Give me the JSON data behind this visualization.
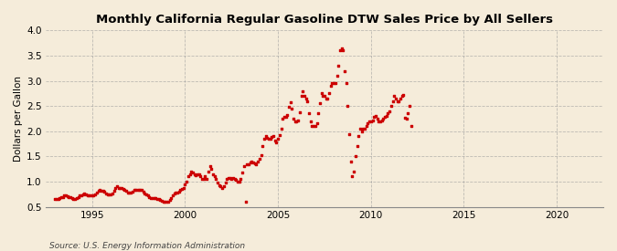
{
  "title": "Monthly California Regular Gasoline DTW Sales Price by All Sellers",
  "ylabel": "Dollars per Gallon",
  "source": "Source: U.S. Energy Information Administration",
  "background_color": "#f5ecda",
  "dot_color": "#cc0000",
  "xlim": [
    1992.5,
    2022.5
  ],
  "ylim": [
    0.5,
    4.0
  ],
  "yticks": [
    0.5,
    1.0,
    1.5,
    2.0,
    2.5,
    3.0,
    3.5,
    4.0
  ],
  "xticks": [
    1995,
    2000,
    2005,
    2010,
    2015,
    2020
  ],
  "months_data": [
    [
      1993,
      1,
      0.655
    ],
    [
      1993,
      2,
      0.65
    ],
    [
      1993,
      3,
      0.66
    ],
    [
      1993,
      4,
      0.67
    ],
    [
      1993,
      5,
      0.69
    ],
    [
      1993,
      6,
      0.7
    ],
    [
      1993,
      7,
      0.72
    ],
    [
      1993,
      8,
      0.725
    ],
    [
      1993,
      9,
      0.715
    ],
    [
      1993,
      10,
      0.7
    ],
    [
      1993,
      11,
      0.685
    ],
    [
      1993,
      12,
      0.67
    ],
    [
      1994,
      1,
      0.66
    ],
    [
      1994,
      2,
      0.66
    ],
    [
      1994,
      3,
      0.68
    ],
    [
      1994,
      4,
      0.7
    ],
    [
      1994,
      5,
      0.72
    ],
    [
      1994,
      6,
      0.73
    ],
    [
      1994,
      7,
      0.75
    ],
    [
      1994,
      8,
      0.76
    ],
    [
      1994,
      9,
      0.75
    ],
    [
      1994,
      10,
      0.73
    ],
    [
      1994,
      11,
      0.72
    ],
    [
      1994,
      12,
      0.72
    ],
    [
      1995,
      1,
      0.72
    ],
    [
      1995,
      2,
      0.72
    ],
    [
      1995,
      3,
      0.74
    ],
    [
      1995,
      4,
      0.78
    ],
    [
      1995,
      5,
      0.82
    ],
    [
      1995,
      6,
      0.83
    ],
    [
      1995,
      7,
      0.82
    ],
    [
      1995,
      8,
      0.82
    ],
    [
      1995,
      9,
      0.8
    ],
    [
      1995,
      10,
      0.77
    ],
    [
      1995,
      11,
      0.75
    ],
    [
      1995,
      12,
      0.74
    ],
    [
      1996,
      1,
      0.75
    ],
    [
      1996,
      2,
      0.77
    ],
    [
      1996,
      3,
      0.82
    ],
    [
      1996,
      4,
      0.88
    ],
    [
      1996,
      5,
      0.9
    ],
    [
      1996,
      6,
      0.88
    ],
    [
      1996,
      7,
      0.87
    ],
    [
      1996,
      8,
      0.87
    ],
    [
      1996,
      9,
      0.86
    ],
    [
      1996,
      10,
      0.84
    ],
    [
      1996,
      11,
      0.81
    ],
    [
      1996,
      12,
      0.79
    ],
    [
      1997,
      1,
      0.78
    ],
    [
      1997,
      2,
      0.78
    ],
    [
      1997,
      3,
      0.8
    ],
    [
      1997,
      4,
      0.83
    ],
    [
      1997,
      5,
      0.84
    ],
    [
      1997,
      6,
      0.84
    ],
    [
      1997,
      7,
      0.84
    ],
    [
      1997,
      8,
      0.84
    ],
    [
      1997,
      9,
      0.83
    ],
    [
      1997,
      10,
      0.8
    ],
    [
      1997,
      11,
      0.77
    ],
    [
      1997,
      12,
      0.75
    ],
    [
      1998,
      1,
      0.72
    ],
    [
      1998,
      2,
      0.7
    ],
    [
      1998,
      3,
      0.68
    ],
    [
      1998,
      4,
      0.68
    ],
    [
      1998,
      5,
      0.68
    ],
    [
      1998,
      6,
      0.68
    ],
    [
      1998,
      7,
      0.66
    ],
    [
      1998,
      8,
      0.65
    ],
    [
      1998,
      9,
      0.63
    ],
    [
      1998,
      10,
      0.62
    ],
    [
      1998,
      11,
      0.61
    ],
    [
      1998,
      12,
      0.61
    ],
    [
      1999,
      1,
      0.6
    ],
    [
      1999,
      2,
      0.61
    ],
    [
      1999,
      3,
      0.64
    ],
    [
      1999,
      4,
      0.68
    ],
    [
      1999,
      5,
      0.73
    ],
    [
      1999,
      6,
      0.76
    ],
    [
      1999,
      7,
      0.78
    ],
    [
      1999,
      8,
      0.79
    ],
    [
      1999,
      9,
      0.8
    ],
    [
      1999,
      10,
      0.83
    ],
    [
      1999,
      11,
      0.85
    ],
    [
      1999,
      12,
      0.88
    ],
    [
      2000,
      1,
      0.95
    ],
    [
      2000,
      2,
      1.0
    ],
    [
      2000,
      3,
      1.1
    ],
    [
      2000,
      4,
      1.15
    ],
    [
      2000,
      5,
      1.2
    ],
    [
      2000,
      6,
      1.18
    ],
    [
      2000,
      7,
      1.14
    ],
    [
      2000,
      8,
      1.13
    ],
    [
      2000,
      9,
      1.15
    ],
    [
      2000,
      10,
      1.14
    ],
    [
      2000,
      11,
      1.11
    ],
    [
      2000,
      12,
      1.05
    ],
    [
      2001,
      1,
      1.05
    ],
    [
      2001,
      2,
      1.1
    ],
    [
      2001,
      3,
      1.05
    ],
    [
      2001,
      4,
      1.2
    ],
    [
      2001,
      5,
      1.3
    ],
    [
      2001,
      6,
      1.25
    ],
    [
      2001,
      7,
      1.15
    ],
    [
      2001,
      8,
      1.1
    ],
    [
      2001,
      9,
      1.05
    ],
    [
      2001,
      10,
      0.98
    ],
    [
      2001,
      11,
      0.92
    ],
    [
      2001,
      12,
      0.9
    ],
    [
      2002,
      1,
      0.88
    ],
    [
      2002,
      2,
      0.9
    ],
    [
      2002,
      3,
      0.98
    ],
    [
      2002,
      4,
      1.05
    ],
    [
      2002,
      5,
      1.08
    ],
    [
      2002,
      6,
      1.07
    ],
    [
      2002,
      7,
      1.06
    ],
    [
      2002,
      8,
      1.07
    ],
    [
      2002,
      9,
      1.06
    ],
    [
      2002,
      10,
      1.03
    ],
    [
      2002,
      11,
      1.0
    ],
    [
      2002,
      12,
      1.0
    ],
    [
      2003,
      1,
      1.05
    ],
    [
      2003,
      2,
      1.18
    ],
    [
      2003,
      3,
      1.3
    ],
    [
      2003,
      4,
      0.6
    ],
    [
      2003,
      5,
      1.35
    ],
    [
      2003,
      6,
      1.35
    ],
    [
      2003,
      7,
      1.38
    ],
    [
      2003,
      8,
      1.4
    ],
    [
      2003,
      9,
      1.38
    ],
    [
      2003,
      10,
      1.36
    ],
    [
      2003,
      11,
      1.35
    ],
    [
      2003,
      12,
      1.4
    ],
    [
      2004,
      1,
      1.45
    ],
    [
      2004,
      2,
      1.53
    ],
    [
      2004,
      3,
      1.7
    ],
    [
      2004,
      4,
      1.85
    ],
    [
      2004,
      5,
      1.9
    ],
    [
      2004,
      6,
      1.87
    ],
    [
      2004,
      7,
      1.85
    ],
    [
      2004,
      8,
      1.85
    ],
    [
      2004,
      9,
      1.88
    ],
    [
      2004,
      10,
      1.9
    ],
    [
      2004,
      11,
      1.82
    ],
    [
      2004,
      12,
      1.78
    ],
    [
      2005,
      1,
      1.85
    ],
    [
      2005,
      2,
      1.92
    ],
    [
      2005,
      3,
      2.05
    ],
    [
      2005,
      4,
      2.25
    ],
    [
      2005,
      5,
      2.28
    ],
    [
      2005,
      6,
      2.28
    ],
    [
      2005,
      7,
      2.32
    ],
    [
      2005,
      8,
      2.48
    ],
    [
      2005,
      9,
      2.58
    ],
    [
      2005,
      10,
      2.45
    ],
    [
      2005,
      11,
      2.25
    ],
    [
      2005,
      12,
      2.2
    ],
    [
      2006,
      1,
      2.2
    ],
    [
      2006,
      2,
      2.22
    ],
    [
      2006,
      3,
      2.38
    ],
    [
      2006,
      4,
      2.7
    ],
    [
      2006,
      5,
      2.8
    ],
    [
      2006,
      6,
      2.7
    ],
    [
      2006,
      7,
      2.65
    ],
    [
      2006,
      8,
      2.6
    ],
    [
      2006,
      9,
      2.35
    ],
    [
      2006,
      10,
      2.2
    ],
    [
      2006,
      11,
      2.1
    ],
    [
      2006,
      12,
      2.1
    ],
    [
      2007,
      1,
      2.1
    ],
    [
      2007,
      2,
      2.15
    ],
    [
      2007,
      3,
      2.35
    ],
    [
      2007,
      4,
      2.55
    ],
    [
      2007,
      5,
      2.75
    ],
    [
      2007,
      6,
      2.7
    ],
    [
      2007,
      7,
      2.7
    ],
    [
      2007,
      8,
      2.65
    ],
    [
      2007,
      9,
      2.65
    ],
    [
      2007,
      10,
      2.75
    ],
    [
      2007,
      11,
      2.9
    ],
    [
      2007,
      12,
      2.95
    ],
    [
      2008,
      1,
      2.95
    ],
    [
      2008,
      2,
      2.95
    ],
    [
      2008,
      3,
      3.1
    ],
    [
      2008,
      4,
      3.3
    ],
    [
      2008,
      5,
      3.6
    ],
    [
      2008,
      6,
      3.65
    ],
    [
      2008,
      7,
      3.6
    ],
    [
      2008,
      8,
      3.2
    ],
    [
      2008,
      9,
      2.95
    ],
    [
      2008,
      10,
      2.5
    ],
    [
      2008,
      11,
      1.95
    ],
    [
      2008,
      12,
      1.4
    ],
    [
      2009,
      1,
      1.1
    ],
    [
      2009,
      2,
      1.2
    ],
    [
      2009,
      3,
      1.5
    ],
    [
      2009,
      4,
      1.7
    ],
    [
      2009,
      5,
      1.9
    ],
    [
      2009,
      6,
      2.05
    ],
    [
      2009,
      7,
      2.0
    ],
    [
      2009,
      8,
      2.05
    ],
    [
      2009,
      9,
      2.05
    ],
    [
      2009,
      10,
      2.1
    ],
    [
      2009,
      11,
      2.15
    ],
    [
      2009,
      12,
      2.2
    ],
    [
      2010,
      1,
      2.2
    ],
    [
      2010,
      2,
      2.22
    ],
    [
      2010,
      3,
      2.28
    ],
    [
      2010,
      4,
      2.3
    ],
    [
      2010,
      5,
      2.25
    ],
    [
      2010,
      6,
      2.2
    ],
    [
      2010,
      7,
      2.2
    ],
    [
      2010,
      8,
      2.22
    ],
    [
      2010,
      9,
      2.25
    ],
    [
      2010,
      10,
      2.28
    ],
    [
      2010,
      11,
      2.3
    ],
    [
      2010,
      12,
      2.35
    ],
    [
      2011,
      1,
      2.4
    ],
    [
      2011,
      2,
      2.5
    ],
    [
      2011,
      3,
      2.6
    ],
    [
      2011,
      4,
      2.7
    ],
    [
      2011,
      5,
      2.65
    ],
    [
      2011,
      6,
      2.6
    ],
    [
      2011,
      7,
      2.6
    ],
    [
      2011,
      8,
      2.65
    ],
    [
      2011,
      9,
      2.7
    ],
    [
      2011,
      10,
      2.72
    ],
    [
      2011,
      11,
      2.27
    ],
    [
      2011,
      12,
      2.25
    ],
    [
      2012,
      1,
      2.35
    ],
    [
      2012,
      2,
      2.5
    ],
    [
      2012,
      3,
      2.1
    ]
  ]
}
